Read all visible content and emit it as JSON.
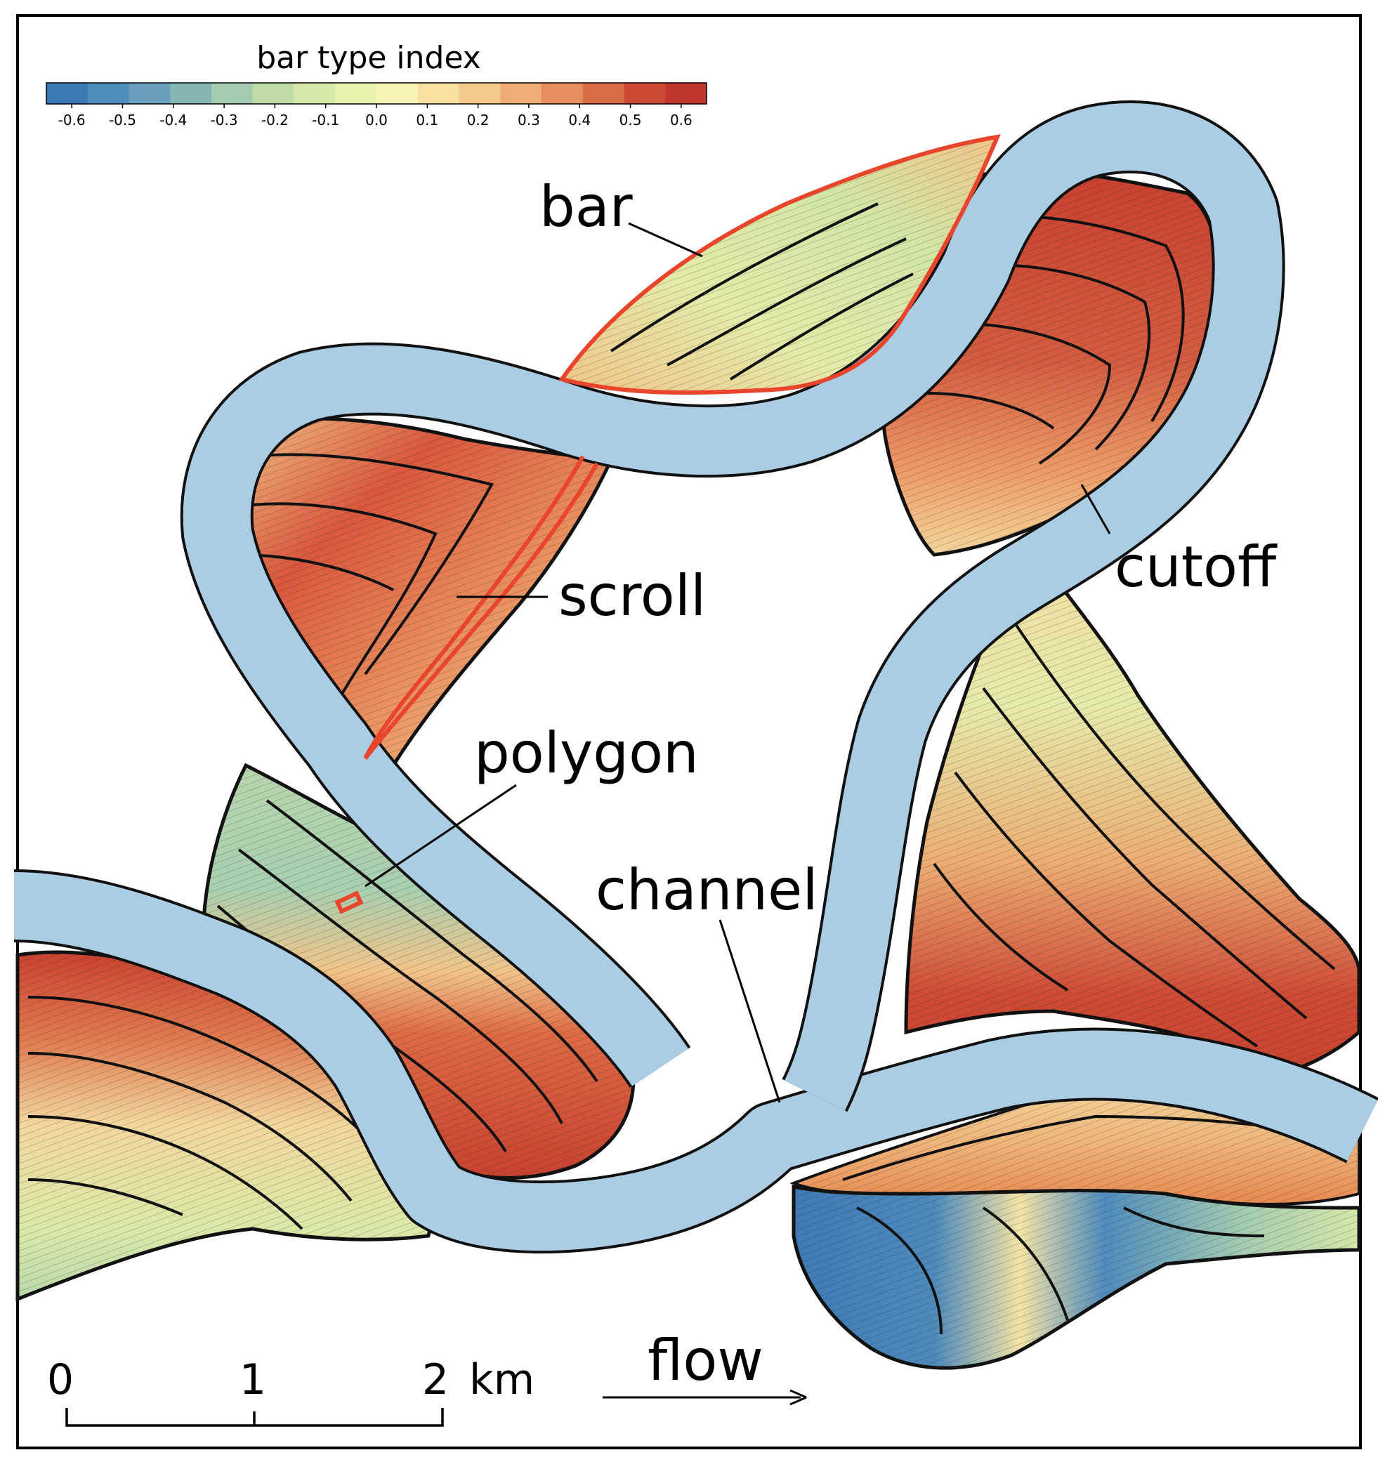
{
  "colorbar": {
    "title": "bar type index",
    "ticks": [
      "-0.6",
      "-0.5",
      "-0.4",
      "-0.3",
      "-0.2",
      "-0.1",
      "0.0",
      "0.1",
      "0.2",
      "0.3",
      "0.4",
      "0.5",
      "0.6"
    ],
    "range": [
      -0.65,
      0.65
    ],
    "colors": [
      "#3a78b6",
      "#4f8dbd",
      "#6aa0bb",
      "#86b5b6",
      "#a4cbb2",
      "#bfdca7",
      "#d6e8a7",
      "#eaf2b0",
      "#fbf4b8",
      "#f8e0a0",
      "#f5c98a",
      "#eead75",
      "#e68e5d",
      "#da6d48",
      "#cb4a35",
      "#c0372e"
    ]
  },
  "labels": {
    "bar": "bar",
    "scroll": "scroll",
    "cutoff": "cutoff",
    "polygon": "polygon",
    "channel": "channel",
    "flow": "flow"
  },
  "scale_bar": {
    "ticks": [
      "0",
      "1",
      "2"
    ],
    "unit": "km"
  },
  "colors": {
    "channel": "#abcde3",
    "highlight": "#e8452c",
    "outline": "#111111"
  }
}
